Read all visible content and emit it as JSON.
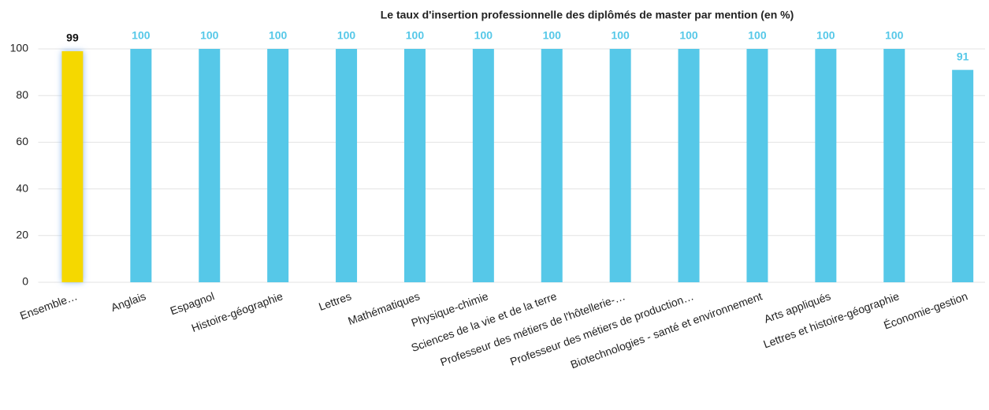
{
  "chart_data": {
    "type": "bar",
    "title": "Le taux d'insertion professionnelle des diplômés de master par mention (en %)",
    "categories": [
      "Ensemble…",
      "Anglais",
      "Espagnol",
      "Histoire-géographie",
      "Lettres",
      "Mathématiques",
      "Physique-chimie",
      "Sciences de la vie et de la terre",
      "Professeur des métiers de l'hôtellerie-…",
      "Professeur des métiers de production…",
      "Biotechnologies - santé et environnement",
      "Arts appliqués",
      "Lettres et histoire-géographie",
      "Économie-gestion"
    ],
    "values": [
      99,
      100,
      100,
      100,
      100,
      100,
      100,
      100,
      100,
      100,
      100,
      100,
      100,
      91
    ],
    "colors": [
      "#f5d800",
      "#56c8e8",
      "#56c8e8",
      "#56c8e8",
      "#56c8e8",
      "#56c8e8",
      "#56c8e8",
      "#56c8e8",
      "#56c8e8",
      "#56c8e8",
      "#56c8e8",
      "#56c8e8",
      "#56c8e8",
      "#56c8e8"
    ],
    "label_colors": [
      "#111111",
      "#56c8e8",
      "#56c8e8",
      "#56c8e8",
      "#56c8e8",
      "#56c8e8",
      "#56c8e8",
      "#56c8e8",
      "#56c8e8",
      "#56c8e8",
      "#56c8e8",
      "#56c8e8",
      "#56c8e8",
      "#56c8e8"
    ],
    "ylim": [
      0,
      100
    ],
    "yticks": [
      0,
      20,
      40,
      60,
      80,
      100
    ],
    "grid": true
  }
}
